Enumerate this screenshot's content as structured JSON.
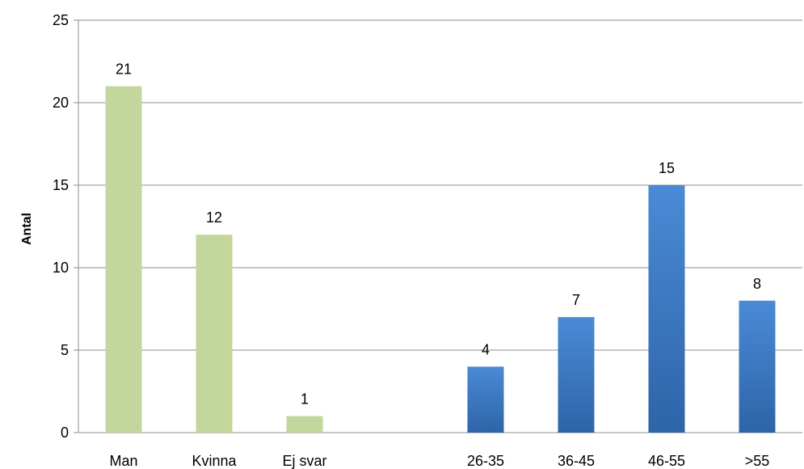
{
  "chart_data": {
    "type": "bar",
    "categories": [
      "Man",
      "Kvinna",
      "Ej svar",
      "",
      "26-35",
      "36-45",
      "46-55",
      ">55"
    ],
    "values": [
      21,
      12,
      1,
      null,
      4,
      7,
      15,
      8
    ],
    "groups": [
      {
        "color": "#c3d69b",
        "indices": [
          0,
          1,
          2
        ]
      },
      {
        "color": "#3e7cc9",
        "indices": [
          4,
          5,
          6,
          7
        ]
      }
    ],
    "ylabel": "Antal",
    "xlabel": "",
    "ylim": [
      0,
      25
    ],
    "yticks": [
      0,
      5,
      10,
      15,
      20,
      25
    ],
    "grid": true,
    "legend": "none"
  }
}
